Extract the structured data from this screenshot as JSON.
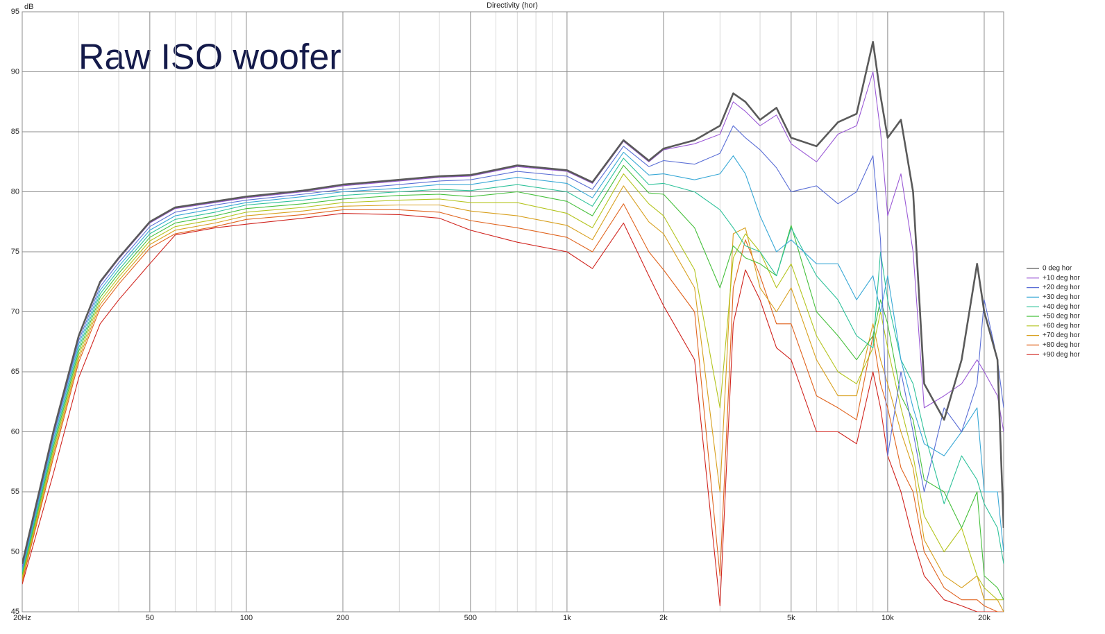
{
  "chart_data": {
    "type": "line",
    "title": "Directivity (hor)",
    "ylabel": "dB",
    "annotation": "Raw ISO woofer",
    "log_x": true,
    "grid": true,
    "legend": "right",
    "xlim": [
      20,
      23000
    ],
    "ylim": [
      45,
      95
    ],
    "xticks": [
      {
        "value": 20,
        "label": "20Hz"
      },
      50,
      100,
      200,
      500,
      {
        "value": 1000,
        "label": "1k"
      },
      {
        "value": 2000,
        "label": "2k"
      },
      {
        "value": 5000,
        "label": "5k"
      },
      {
        "value": 10000,
        "label": "10k"
      },
      {
        "value": 20000,
        "label": "20k"
      }
    ],
    "xminorticks": [
      30,
      40,
      60,
      70,
      80,
      90,
      300,
      400,
      600,
      700,
      800,
      900,
      3000,
      4000,
      6000,
      7000,
      8000,
      9000
    ],
    "yticks": [
      45,
      50,
      55,
      60,
      65,
      70,
      75,
      80,
      85,
      90,
      95
    ],
    "x": [
      20,
      25,
      30,
      35,
      40,
      50,
      60,
      80,
      100,
      150,
      200,
      300,
      400,
      500,
      700,
      1000,
      1200,
      1500,
      1800,
      2000,
      2500,
      3000,
      3300,
      3600,
      4000,
      4500,
      5000,
      6000,
      7000,
      8000,
      9000,
      9500,
      10000,
      11000,
      12000,
      13000,
      15000,
      17000,
      19000,
      20000,
      22000,
      23000
    ],
    "series": [
      {
        "name": "0 deg hor",
        "color": "#5a5a5a",
        "values": [
          49,
          60,
          68,
          72.5,
          74.5,
          77.5,
          78.7,
          79.2,
          79.6,
          80.1,
          80.6,
          81.0,
          81.3,
          81.4,
          82.2,
          81.8,
          80.8,
          84.3,
          82.6,
          83.6,
          84.3,
          85.5,
          88.2,
          87.5,
          86.0,
          87.0,
          84.5,
          83.8,
          85.8,
          86.5,
          92.5,
          88,
          84.5,
          86.0,
          80,
          64,
          61,
          66,
          74,
          70,
          66,
          52
        ]
      },
      {
        "name": "+10 deg hor",
        "color": "#9b5ad6",
        "values": [
          48.9,
          59.9,
          67.9,
          72.4,
          74.4,
          77.4,
          78.6,
          79.1,
          79.5,
          80.0,
          80.5,
          80.9,
          81.2,
          81.3,
          82.1,
          81.7,
          80.7,
          84.2,
          82.5,
          83.5,
          84.0,
          84.8,
          87.5,
          86.7,
          85.5,
          86.4,
          84.0,
          82.5,
          84.8,
          85.5,
          90,
          85,
          78,
          81.5,
          75,
          62,
          63,
          64,
          66,
          65,
          63,
          60
        ]
      },
      {
        "name": "+20 deg hor",
        "color": "#5a6ed6",
        "values": [
          48.7,
          59.6,
          67.6,
          72.1,
          74.1,
          77.1,
          78.3,
          78.9,
          79.3,
          79.8,
          80.2,
          80.6,
          80.9,
          81.0,
          81.7,
          81.3,
          80.2,
          83.8,
          82.1,
          82.6,
          82.3,
          83.2,
          85.5,
          84.5,
          83.5,
          82.0,
          80.0,
          80.5,
          79.0,
          80.0,
          83.0,
          76,
          58,
          65,
          60,
          55,
          62,
          60,
          64,
          71,
          66,
          62
        ]
      },
      {
        "name": "+30 deg hor",
        "color": "#38a8d6",
        "values": [
          48.5,
          59.3,
          67.3,
          71.8,
          73.8,
          76.8,
          78.0,
          78.6,
          79.1,
          79.6,
          80.0,
          80.3,
          80.6,
          80.6,
          81.2,
          80.7,
          79.5,
          83.3,
          81.4,
          81.5,
          81.0,
          81.5,
          83.0,
          81.5,
          78.0,
          75.0,
          76.0,
          74.0,
          74.0,
          71.0,
          73.0,
          70,
          73,
          66,
          62,
          59,
          58,
          60,
          62,
          55,
          55,
          50
        ]
      },
      {
        "name": "+40 deg hor",
        "color": "#2ec29a",
        "values": [
          48.3,
          59.0,
          67.0,
          71.5,
          73.5,
          76.5,
          77.7,
          78.3,
          78.9,
          79.3,
          79.7,
          80.0,
          80.2,
          80.1,
          80.6,
          80.0,
          78.8,
          82.8,
          80.6,
          80.7,
          80.0,
          78.5,
          77.0,
          75.5,
          75.0,
          73.0,
          77.0,
          73.0,
          71.0,
          68.0,
          67.0,
          75,
          71,
          66,
          64,
          60,
          54,
          58,
          56,
          54,
          52,
          49
        ]
      },
      {
        "name": "+50 deg hor",
        "color": "#46c03c",
        "values": [
          48.1,
          58.7,
          66.7,
          71.2,
          73.2,
          76.2,
          77.4,
          78.0,
          78.6,
          79.0,
          79.4,
          79.7,
          79.8,
          79.6,
          80.0,
          79.2,
          78.0,
          82.2,
          79.9,
          79.8,
          77.0,
          72.0,
          75.5,
          74.5,
          74.0,
          73.0,
          77.2,
          70.0,
          68.0,
          66.0,
          68.0,
          71,
          69,
          63,
          61,
          56,
          55,
          52,
          55,
          48,
          47,
          46
        ]
      },
      {
        "name": "+60 deg hor",
        "color": "#b4c41e",
        "values": [
          47.9,
          58.4,
          66.4,
          70.9,
          72.9,
          75.9,
          77.1,
          77.7,
          78.3,
          78.7,
          79.1,
          79.3,
          79.4,
          79.1,
          79.1,
          78.2,
          77.0,
          81.5,
          79.0,
          78.0,
          73.5,
          62.0,
          74.5,
          76.5,
          75.0,
          72.0,
          74.0,
          68.0,
          65.0,
          64.0,
          67.0,
          70,
          67,
          62,
          58,
          53,
          50,
          52,
          48,
          47,
          46,
          46
        ]
      },
      {
        "name": "+70 deg hor",
        "color": "#d8a01e",
        "values": [
          47.7,
          58.1,
          66.1,
          70.6,
          72.6,
          75.6,
          76.8,
          77.4,
          78.0,
          78.4,
          78.8,
          78.9,
          78.9,
          78.4,
          78.0,
          77.2,
          76.0,
          80.5,
          77.5,
          76.5,
          72.0,
          55.0,
          76.5,
          77.0,
          72.0,
          70.0,
          72.0,
          66.0,
          63.0,
          63.0,
          69.0,
          66,
          64,
          60,
          57,
          51,
          48,
          47,
          48,
          46,
          46,
          45
        ]
      },
      {
        "name": "+80 deg hor",
        "color": "#e0641e",
        "values": [
          47.5,
          57.8,
          65.8,
          70.3,
          72.3,
          75.3,
          76.5,
          77.1,
          77.7,
          78.1,
          78.5,
          78.5,
          78.3,
          77.6,
          77.0,
          76.2,
          75.0,
          79.0,
          75.0,
          73.5,
          70.0,
          48.0,
          72.0,
          76.0,
          73.0,
          69.0,
          69.0,
          63.0,
          62.0,
          61.0,
          68.0,
          64,
          62,
          57,
          55,
          50,
          47,
          46,
          46,
          45.5,
          45,
          45
        ]
      },
      {
        "name": "+90 deg hor",
        "color": "#d0241e",
        "values": [
          47.3,
          56.5,
          64.5,
          69.0,
          71.0,
          74.0,
          76.4,
          77.0,
          77.3,
          77.8,
          78.2,
          78.1,
          77.8,
          76.8,
          75.8,
          75.0,
          73.6,
          77.4,
          73.0,
          70.5,
          66.0,
          45.5,
          69.0,
          73.5,
          71.0,
          67.0,
          66.0,
          60.0,
          60.0,
          59.0,
          65.0,
          62,
          58,
          55,
          51,
          48,
          46,
          45.5,
          45,
          45,
          45,
          45
        ]
      }
    ]
  }
}
